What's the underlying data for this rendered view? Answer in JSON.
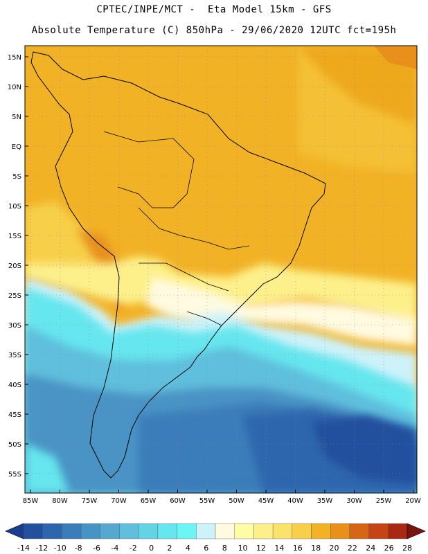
{
  "header": {
    "line1": "CPTEC/INPE/MCT -  Eta Model 15km - GFS",
    "line2": "Absolute Temperature (C) 850hPa - 29/06/2020 12UTC fct=195h"
  },
  "axes": {
    "lat_labels": [
      "15N",
      "10N",
      "5N",
      "EQ",
      "5S",
      "10S",
      "15S",
      "20S",
      "25S",
      "30S",
      "35S",
      "40S",
      "45S",
      "50S",
      "55S"
    ],
    "lon_labels": [
      "85W",
      "80W",
      "75W",
      "70W",
      "65W",
      "60W",
      "55W",
      "50W",
      "45W",
      "40W",
      "35W",
      "30W",
      "25W",
      "20W"
    ]
  },
  "colorbar": {
    "labels": [
      "-14",
      "-12",
      "-10",
      "-8",
      "-6",
      "-4",
      "-2",
      "0",
      "2",
      "4",
      "6",
      "8",
      "10",
      "12",
      "14",
      "16",
      "18",
      "20",
      "22",
      "24",
      "26",
      "28"
    ],
    "colors": [
      "#1b3d8f",
      "#22509e",
      "#2d66ad",
      "#3a7dba",
      "#4893c5",
      "#55a9d0",
      "#5fbfdc",
      "#62d4e6",
      "#66e6ef",
      "#6cf5f5",
      "#cdf2fa",
      "#fffae0",
      "#fffca8",
      "#fdf08a",
      "#fbe26a",
      "#f7cf4a",
      "#f2b225",
      "#e8901a",
      "#d86516",
      "#c44414",
      "#a82812",
      "#7a1410"
    ]
  }
}
